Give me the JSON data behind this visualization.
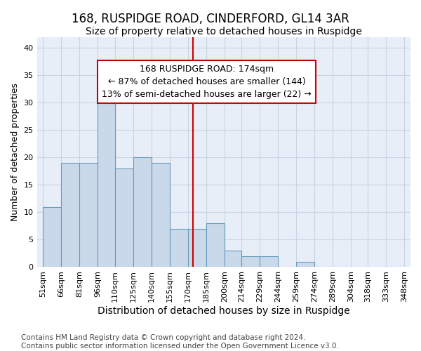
{
  "title": "168, RUSPIDGE ROAD, CINDERFORD, GL14 3AR",
  "subtitle": "Size of property relative to detached houses in Ruspidge",
  "xlabel": "Distribution of detached houses by size in Ruspidge",
  "ylabel": "Number of detached properties",
  "bin_edges": [
    51,
    66,
    81,
    96,
    110,
    125,
    140,
    155,
    170,
    185,
    200,
    214,
    229,
    244,
    259,
    274,
    289,
    304,
    318,
    333,
    348
  ],
  "bar_heights": [
    11,
    19,
    19,
    30,
    18,
    20,
    19,
    7,
    7,
    8,
    3,
    2,
    2,
    0,
    1,
    0,
    0,
    0,
    0,
    0
  ],
  "bar_color": "#c9d9ea",
  "bar_edgecolor": "#6699bb",
  "vertical_line_x": 174,
  "vertical_line_color": "#cc0000",
  "annotation_text": "168 RUSPIDGE ROAD: 174sqm\n← 87% of detached houses are smaller (144)\n13% of semi-detached houses are larger (22) →",
  "annotation_box_facecolor": "#ffffff",
  "annotation_box_edgecolor": "#cc0000",
  "ylim": [
    0,
    42
  ],
  "yticks": [
    0,
    5,
    10,
    15,
    20,
    25,
    30,
    35,
    40
  ],
  "xlim_left": 46,
  "xlim_right": 353,
  "grid_color": "#c8d4e4",
  "background_color": "#e8eef8",
  "footer_text": "Contains HM Land Registry data © Crown copyright and database right 2024.\nContains public sector information licensed under the Open Government Licence v3.0.",
  "title_fontsize": 12,
  "subtitle_fontsize": 10,
  "xlabel_fontsize": 10,
  "ylabel_fontsize": 9,
  "tick_fontsize": 8,
  "annotation_fontsize": 9,
  "footer_fontsize": 7.5
}
